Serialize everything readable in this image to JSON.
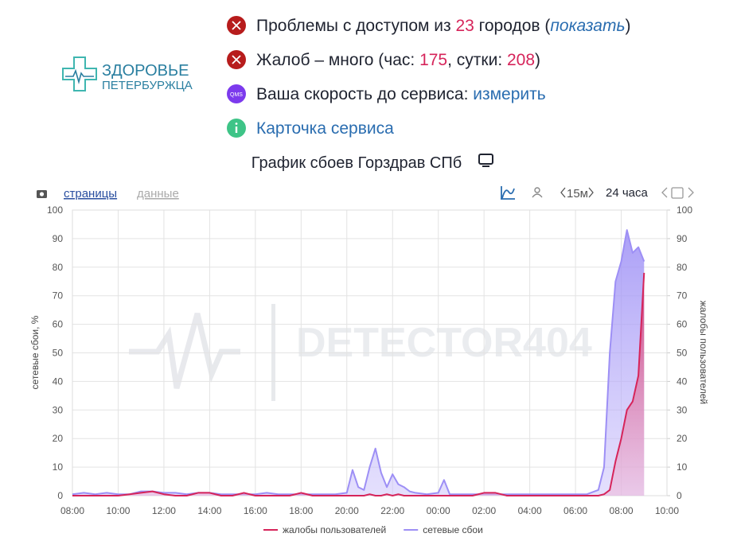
{
  "logo": {
    "line1": "ЗДОРОВЬЕ",
    "line2": "ПЕТЕРБУРЖЦА"
  },
  "status": [
    {
      "text": "Проблемы с доступом из ",
      "count": 23,
      "text2": " городов (",
      "link": "показать",
      "text3": ")"
    },
    {
      "text": "Жалоб – много (час: ",
      "hour": 175,
      "text2": ", сутки: ",
      "day": 208,
      "text3": ")"
    },
    {
      "icon": "QMS",
      "text": "Ваша скорость до сервиса: ",
      "link": "измерить"
    },
    {
      "link": "Карточка сервиса"
    }
  ],
  "toolbar": {
    "pages": "страницы",
    "data": "данные",
    "interval": "15м",
    "period": "24 часа"
  },
  "watermark": "DETECTOR404",
  "chart_data": {
    "type": "area",
    "title": "График сбоев Горздрав СПб",
    "y_label": "сетевые сбои, %",
    "y2_label": "жалобы пользователей",
    "xlim": [
      8,
      34
    ],
    "xticks": [
      {
        "value": 8,
        "label": "08:00"
      },
      {
        "value": 10,
        "label": "10:00"
      },
      {
        "value": 12,
        "label": "12:00"
      },
      {
        "value": 14,
        "label": "14:00"
      },
      {
        "value": 16,
        "label": "16:00"
      },
      {
        "value": 18,
        "label": "18:00"
      },
      {
        "value": 20,
        "label": "20:00"
      },
      {
        "value": 22,
        "label": "22:00"
      },
      {
        "value": 24,
        "label": "00:00"
      },
      {
        "value": 26,
        "label": "02:00"
      },
      {
        "value": 28,
        "label": "04:00"
      },
      {
        "value": 30,
        "label": "06:00"
      },
      {
        "value": 32,
        "label": "08:00"
      },
      {
        "value": 34,
        "label": "10:00"
      }
    ],
    "ylim": [
      0,
      100
    ],
    "yticks": [
      0,
      10,
      20,
      30,
      40,
      50,
      60,
      70,
      80,
      90,
      100
    ],
    "y2lim": [
      0,
      100
    ],
    "y2ticks": [
      0,
      10,
      20,
      30,
      40,
      50,
      60,
      70,
      80,
      90,
      100
    ],
    "grid": true,
    "x": [
      8,
      8.5,
      9,
      9.5,
      10,
      10.5,
      11,
      11.5,
      12,
      12.5,
      13,
      13.5,
      14,
      14.5,
      15,
      15.5,
      16,
      16.5,
      17,
      17.5,
      18,
      18.5,
      19,
      19.5,
      20,
      20.25,
      20.5,
      20.75,
      21,
      21.25,
      21.5,
      21.75,
      22,
      22.25,
      22.5,
      22.75,
      23,
      23.5,
      24,
      24.25,
      24.5,
      25,
      25.5,
      26,
      26.5,
      27,
      27.5,
      28,
      28.5,
      29,
      29.5,
      30,
      30.5,
      31,
      31.25,
      31.5,
      31.75,
      32,
      32.25,
      32.5,
      32.75,
      33
    ],
    "series": [
      {
        "name": "сетевые сбои",
        "color": "#9d8ff5",
        "values": [
          0.5,
          1,
          0.5,
          1,
          0.5,
          0.5,
          1.5,
          1.5,
          1,
          1,
          0.5,
          1,
          1,
          0.5,
          0.5,
          0.5,
          0.5,
          1,
          0.5,
          0.5,
          0.5,
          0.5,
          0.5,
          0.5,
          1,
          9,
          3,
          2,
          10,
          16.5,
          8,
          3,
          7.5,
          4,
          3,
          1.5,
          1,
          0.5,
          1,
          5.5,
          0.5,
          0.5,
          0.5,
          0.5,
          0.5,
          0.5,
          0.5,
          0.5,
          0.5,
          0.5,
          0.5,
          0.5,
          0.5,
          2,
          10,
          50,
          75,
          82,
          93,
          85,
          87,
          82
        ]
      },
      {
        "name": "жалобы пользователей",
        "color": "#d6245a",
        "axis": "y2",
        "values": [
          0,
          0,
          0,
          0,
          0,
          0.5,
          1,
          1.5,
          0.5,
          0,
          0,
          1,
          1,
          0,
          0,
          1,
          0,
          0,
          0,
          0,
          1,
          0,
          0,
          0,
          0,
          0,
          0,
          0,
          0.5,
          0,
          0,
          0.5,
          0,
          0.5,
          0,
          0,
          0,
          0,
          0,
          0,
          0,
          0,
          0,
          1,
          1,
          0,
          0,
          0,
          0,
          0,
          0,
          0,
          0,
          0,
          0.5,
          2,
          12,
          20,
          30,
          33,
          42,
          78
        ]
      }
    ],
    "legend": "bottom"
  }
}
